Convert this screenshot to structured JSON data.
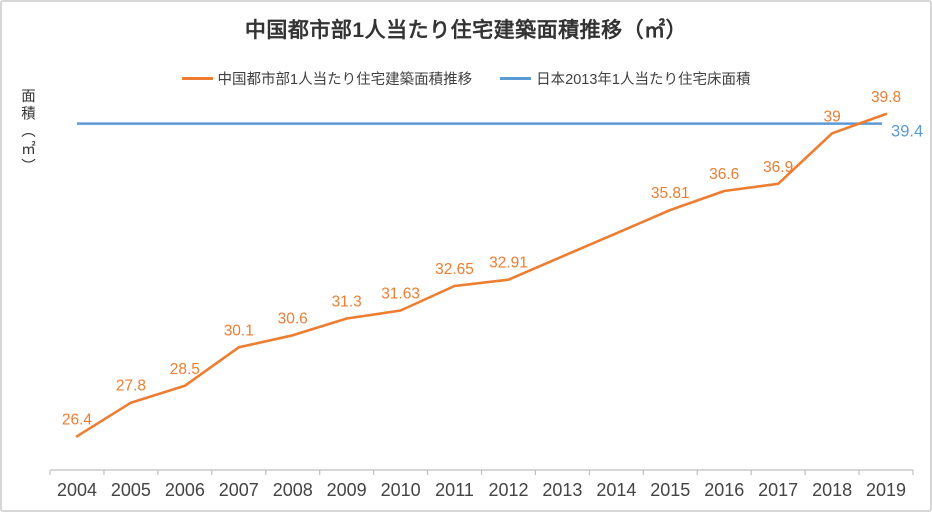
{
  "chart_data": {
    "type": "line",
    "title": "中国都市部1人当たり住宅建築面積推移（㎡）",
    "ylabel": "面積（㎡）",
    "categories": [
      "2004",
      "2005",
      "2006",
      "2007",
      "2008",
      "2009",
      "2010",
      "2011",
      "2012",
      "2013",
      "2014",
      "2015",
      "2016",
      "2017",
      "2018",
      "2019"
    ],
    "series": [
      {
        "name": "中国都市部1人当たり住宅建築面積推移",
        "color": "#ED7D31",
        "values": [
          26.4,
          27.8,
          28.5,
          30.1,
          30.6,
          31.3,
          31.63,
          32.65,
          32.91,
          33.88,
          34.84,
          35.81,
          36.6,
          36.9,
          39,
          39.8
        ],
        "data_labels": [
          "26.4",
          "27.8",
          "28.5",
          "30.1",
          "30.6",
          "31.3",
          "31.63",
          "32.65",
          "32.91",
          "",
          "",
          "35.81",
          "36.6",
          "36.9",
          "39",
          "39.8"
        ]
      },
      {
        "name": "日本2013年1人当たり住宅床面積",
        "color": "#5B9BD5",
        "constant_value": 39.4,
        "end_label": "39.4"
      }
    ],
    "ylim": [
      25,
      40.3
    ],
    "grid": false,
    "legend_position": "top",
    "axis_color": "#BFBFBF",
    "tick_label_color": "#444444"
  }
}
